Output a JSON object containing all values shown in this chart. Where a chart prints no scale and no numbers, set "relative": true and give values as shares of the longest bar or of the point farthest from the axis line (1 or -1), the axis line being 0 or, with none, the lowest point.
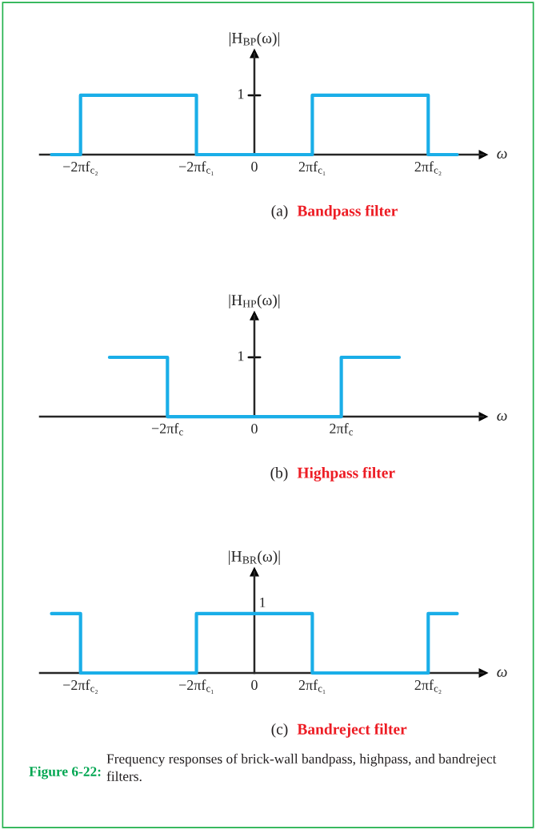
{
  "chart_data": [
    {
      "type": "step",
      "relative": true,
      "title": "(a)  Bandpass filter",
      "xlabel": "ω",
      "ylabel": "|H$_{BP}$(ω)|",
      "categories": [
        null,
        "−2πf$_{c₂}$",
        null,
        null,
        null,
        "−2πf$_{c₁}$",
        null,
        "0",
        null,
        "2πf$_{c₁}$",
        null,
        null,
        null,
        "2πf$_{c₂}$",
        null
      ],
      "series": [
        {
          "color": "#1aaee8",
          "values": [
            0,
            1,
            1,
            1,
            1,
            0,
            0,
            0,
            0,
            1,
            1,
            1,
            1,
            0,
            0
          ]
        }
      ],
      "annotations": [
        "1"
      ]
    },
    {
      "type": "step",
      "relative": true,
      "title": "(b)  Highpass filter",
      "xlabel": "ω",
      "ylabel": "|H$_{HP}$(ω)|",
      "categories": [
        null,
        null,
        null,
        null,
        "−2πf$_{c}$",
        null,
        null,
        "0",
        null,
        null,
        "2πf$_{c}$",
        null,
        null,
        null,
        null
      ],
      "series": [
        {
          "color": "#1aaee8",
          "values": [
            null,
            null,
            1,
            1,
            0,
            0,
            0,
            0,
            0,
            0,
            1,
            1,
            1,
            null,
            null
          ]
        }
      ],
      "annotations": [
        "1"
      ]
    },
    {
      "type": "step",
      "relative": true,
      "title": "(c)  Bandreject filter",
      "xlabel": "ω",
      "ylabel": "|H$_{BR}$(ω)|",
      "categories": [
        null,
        "−2πf$_{c₂}$",
        null,
        null,
        null,
        "−2πf$_{c₁}$",
        null,
        "0",
        null,
        "2πf$_{c₁}$",
        null,
        null,
        null,
        "2πf$_{c₂}$",
        null
      ],
      "series": [
        {
          "color": "#1aaee8",
          "values": [
            1,
            0,
            0,
            0,
            0,
            1,
            1,
            1,
            1,
            0,
            0,
            0,
            0,
            1,
            1
          ]
        }
      ],
      "annotations": [
        {
          "text": "1",
          "x": "0",
          "y": 1
        },
        "Figure 6-22: Frequency responses of brick-wall bandpass, highpass, and bandreject filters."
      ]
    }
  ]
}
